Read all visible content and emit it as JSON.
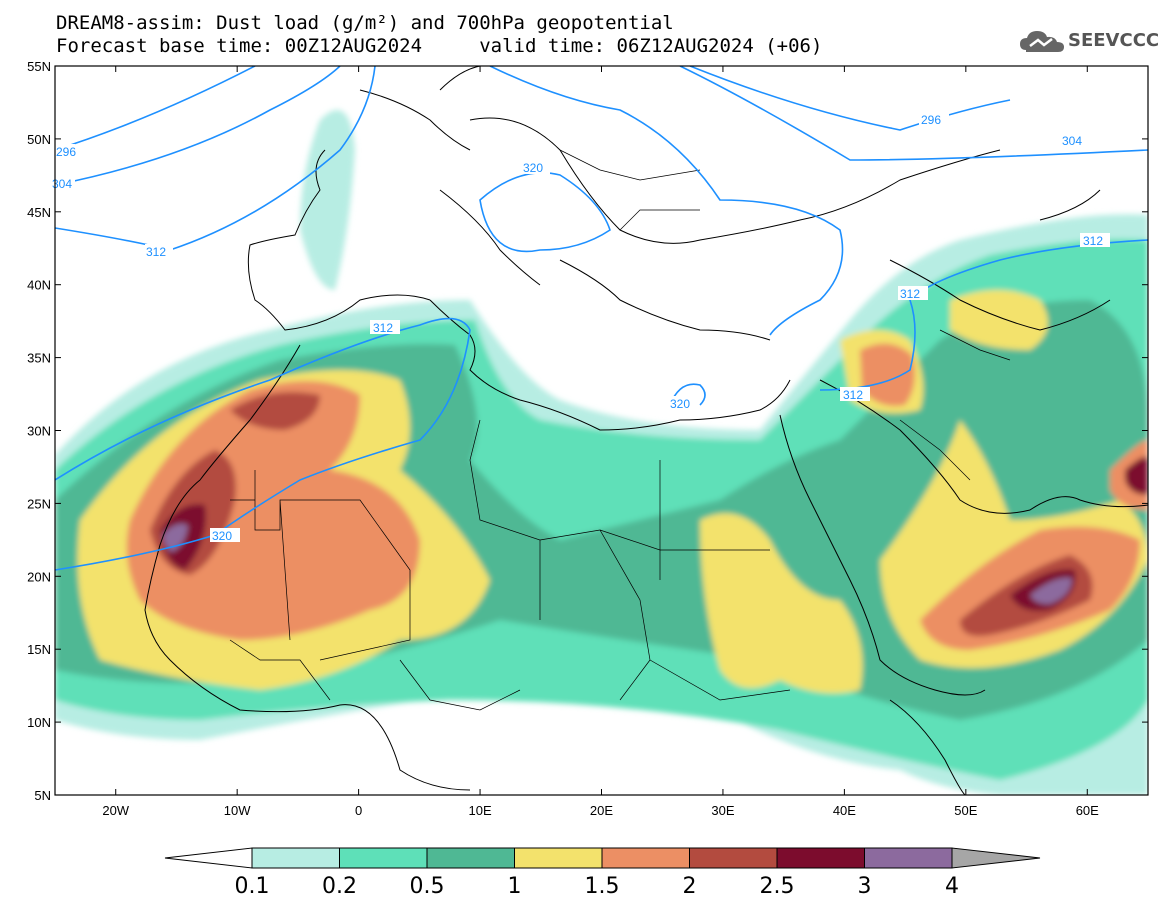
{
  "header": {
    "line1": "DREAM8-assim: Dust load (g/m²) and 700hPa geopotential",
    "line2": "Forecast base time: 00Z12AUG2024     valid time: 06Z12AUG2024 (+06)"
  },
  "logo": {
    "text": "SEEVCCC",
    "icon": "cloud-icon"
  },
  "map": {
    "lat_labels": [
      "55N",
      "50N",
      "45N",
      "40N",
      "35N",
      "30N",
      "25N",
      "20N",
      "15N",
      "10N",
      "5N"
    ],
    "lon_labels": [
      "20W",
      "10W",
      "0",
      "10E",
      "20E",
      "30E",
      "40E",
      "50E",
      "60E"
    ],
    "lat_values": [
      55,
      50,
      45,
      40,
      35,
      30,
      25,
      20,
      15,
      10,
      5
    ],
    "lon_values": [
      -20,
      -10,
      0,
      10,
      20,
      30,
      40,
      50,
      60
    ],
    "extent": {
      "lon_min": -25,
      "lon_max": 65,
      "lat_min": 5,
      "lat_max": 55
    },
    "geopotential_labels": [
      "296",
      "304",
      "312",
      "320",
      "304",
      "296",
      "312",
      "320",
      "320",
      "312",
      "312",
      "312"
    ],
    "colors": {
      "coast": "#000000",
      "isoline": "#1e90ff",
      "land_bg": "#ffffff"
    }
  },
  "colorbar": {
    "levels": [
      "0.1",
      "0.2",
      "0.5",
      "1",
      "1.5",
      "2",
      "2.5",
      "3",
      "4"
    ],
    "colors": [
      "#ffffff",
      "#b7ede3",
      "#5ee0b8",
      "#4fb894",
      "#f3e26c",
      "#ec8f64",
      "#b34b3f",
      "#7c0c2d",
      "#8c6a9e",
      "#a6a6a6"
    ]
  }
}
